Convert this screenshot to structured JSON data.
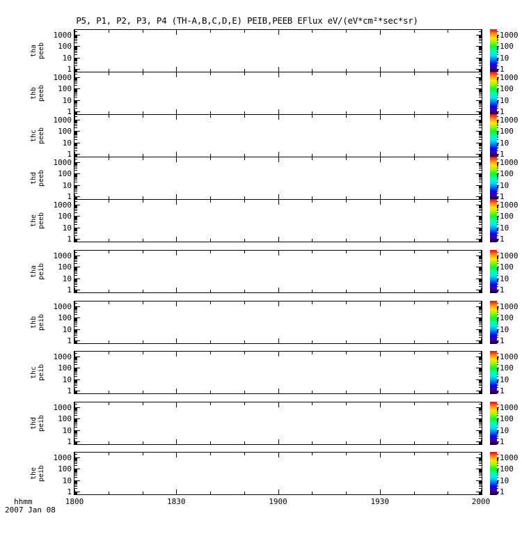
{
  "title": "P5, P1, P2, P3, P4 (TH-A,B,C,D,E) PEIB,PEEB EFlux eV/(eV*cm²*sec*sr)",
  "x_axis": {
    "unit_label": "hhmm",
    "date_label": "2007 Jan 08",
    "ticks": [
      "1800",
      "1830",
      "1900",
      "1930",
      "2000"
    ]
  },
  "y_axis": {
    "ticks": [
      "1000",
      "100",
      "10",
      "1"
    ],
    "scale": "log"
  },
  "colorbar": {
    "ticks": [
      "1000",
      "100",
      "10",
      "1"
    ],
    "gradient_top_to_bottom": [
      "#ff0000",
      "#ff8800",
      "#ffe800",
      "#8aff00",
      "#00ff30",
      "#00ffb4",
      "#00e4ff",
      "#0080ff",
      "#1000ff",
      "#3c0096",
      "#120020"
    ]
  },
  "panels": [
    {
      "label_line1": "tha",
      "label_line2": "peeb",
      "group": "peeb"
    },
    {
      "label_line1": "thb",
      "label_line2": "peeb",
      "group": "peeb"
    },
    {
      "label_line1": "thc",
      "label_line2": "peeb",
      "group": "peeb"
    },
    {
      "label_line1": "thd",
      "label_line2": "peeb",
      "group": "peeb"
    },
    {
      "label_line1": "the",
      "label_line2": "peeb",
      "group": "peeb"
    },
    {
      "label_line1": "tha",
      "label_line2": "peib",
      "group": "peib"
    },
    {
      "label_line1": "thb",
      "label_line2": "peib",
      "group": "peib"
    },
    {
      "label_line1": "thc",
      "label_line2": "peib",
      "group": "peib"
    },
    {
      "label_line1": "thd",
      "label_line2": "peib",
      "group": "peib"
    },
    {
      "label_line1": "the",
      "label_line2": "peib",
      "group": "peib"
    }
  ],
  "chart_data": {
    "type": "heatmap",
    "title": "P5, P1, P2, P3, P4 (TH-A,B,C,D,E) PEIB,PEEB EFlux eV/(eV*cm²*sec*sr)",
    "xlabel": "hhmm",
    "date_label": "2007 Jan 08",
    "x_ticks": [
      "1800",
      "1830",
      "1900",
      "1930",
      "2000"
    ],
    "x_minor_tick_interval_minutes": 10,
    "y_scale": "log",
    "ylim": [
      1,
      1000
    ],
    "y_ticks": [
      1000,
      100,
      10,
      1
    ],
    "colorbar_lim": [
      1,
      1000
    ],
    "colorbar_ticks": [
      1000,
      100,
      10,
      1
    ],
    "legend_position": "right-colorbar-per-panel",
    "grid": false,
    "panels": [
      "tha peeb",
      "thb peeb",
      "thc peeb",
      "thd peeb",
      "the peeb",
      "tha peib",
      "thb peib",
      "thc peib",
      "thd peib",
      "the peib"
    ],
    "series": [
      {
        "name": "tha peeb",
        "values": []
      },
      {
        "name": "thb peeb",
        "values": []
      },
      {
        "name": "thc peeb",
        "values": []
      },
      {
        "name": "thd peeb",
        "values": []
      },
      {
        "name": "the peeb",
        "values": []
      },
      {
        "name": "tha peib",
        "values": []
      },
      {
        "name": "thb peib",
        "values": []
      },
      {
        "name": "thc peib",
        "values": []
      },
      {
        "name": "thd peib",
        "values": []
      },
      {
        "name": "the peib",
        "values": []
      }
    ],
    "no_data_visible": true
  }
}
